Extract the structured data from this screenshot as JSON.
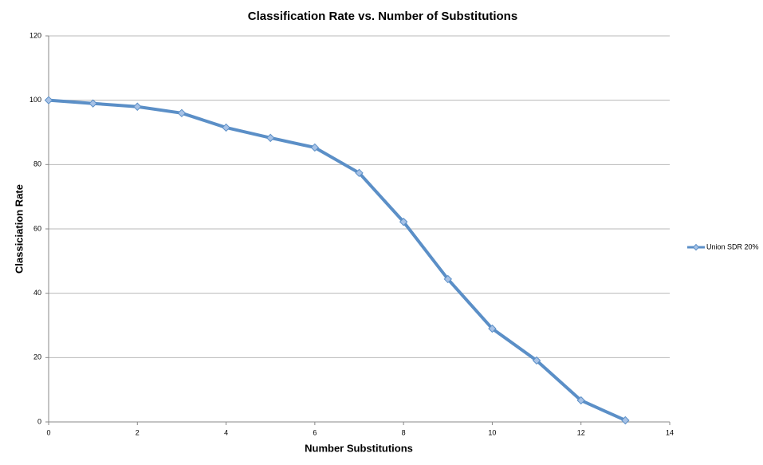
{
  "chart_data": {
    "type": "line",
    "title": "Classification Rate vs. Number of Substitutions",
    "x_label": "Number Substitutions",
    "y_label": "Classiciation Rate",
    "x": [
      0,
      1,
      2,
      3,
      4,
      5,
      6,
      7,
      8,
      9,
      10,
      11,
      12,
      13
    ],
    "series": [
      {
        "name": "Union SDR 20%",
        "color": "#5b8fc7",
        "marker_color": "#a7c2e6",
        "values": [
          100,
          99,
          98,
          96,
          91.5,
          88.3,
          85.3,
          77.4,
          62.2,
          44.4,
          29,
          19.1,
          6.7,
          0.5
        ]
      }
    ],
    "xlim": [
      0,
      14
    ],
    "xticks": [
      0,
      2,
      4,
      6,
      8,
      10,
      12,
      14
    ],
    "ylim": [
      0,
      120
    ],
    "yticks": [
      0,
      20,
      40,
      60,
      80,
      100,
      120
    ],
    "grid": true,
    "legend": "right"
  }
}
